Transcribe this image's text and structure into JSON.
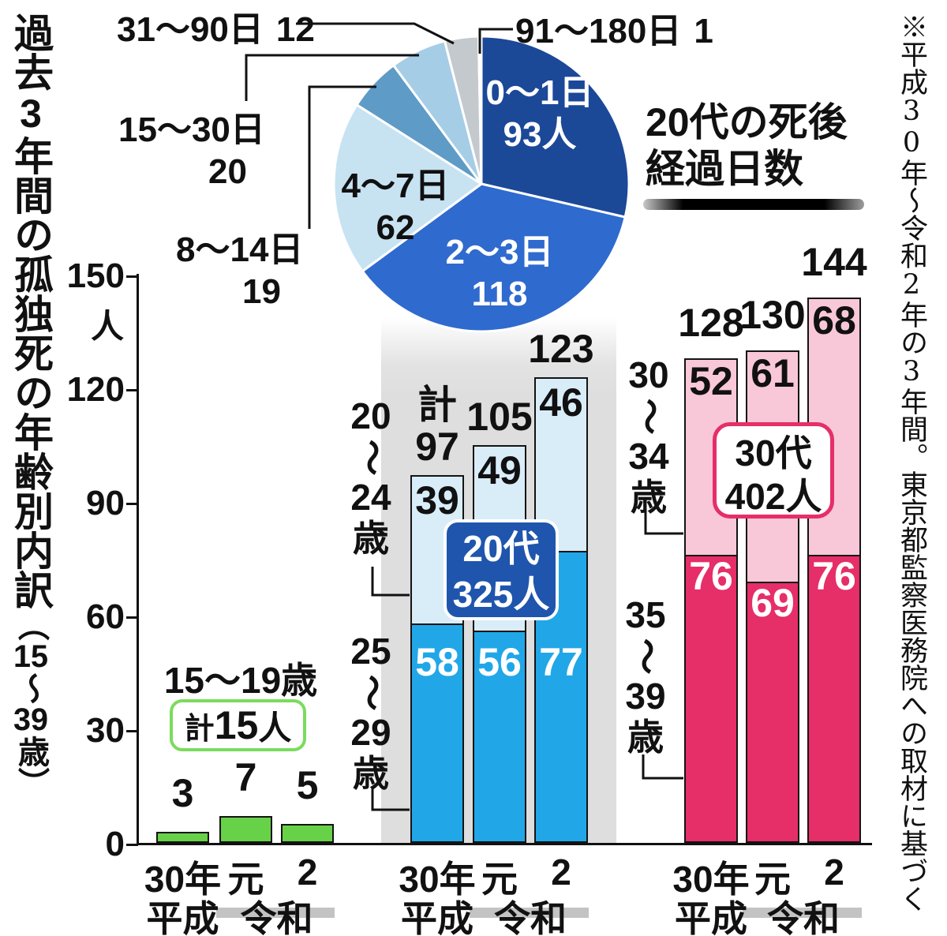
{
  "title_left": {
    "main": "過去3年間の孤独死の年齢別内訳",
    "suffix": "（15～39歳）"
  },
  "source_note": "※平成30年～令和2年の3年間。東京都監察医務院への取材に基づく",
  "pie": {
    "title_lines": [
      "20代の死後",
      "経過日数"
    ],
    "total": 325,
    "slices": [
      {
        "label": "0～1日",
        "value": 93,
        "display": "93人",
        "color": "#1c4898"
      },
      {
        "label": "2～3日",
        "value": 118,
        "display": "118",
        "color": "#2f6ace"
      },
      {
        "label": "4～7日",
        "value": 62,
        "display": "62",
        "color": "#c7e3f2"
      },
      {
        "label": "8～14日",
        "value": 19,
        "display": "19",
        "color": "#5e9bc6"
      },
      {
        "label": "15～30日",
        "value": 20,
        "display": "20",
        "color": "#a6cde6"
      },
      {
        "label": "31～90日",
        "value": 12,
        "display": "12",
        "color": "#c4c9cd"
      },
      {
        "label": "91～180日",
        "value": 1,
        "display": "1",
        "color": "#e4e7ea"
      }
    ]
  },
  "y_axis": {
    "ticks": [
      0,
      30,
      60,
      90,
      120,
      150
    ],
    "unit": "人",
    "max": 150
  },
  "x_axis": {
    "year_labels": [
      "30年",
      "元",
      "2"
    ],
    "era_heisei": "平成",
    "era_reiwa": "令和"
  },
  "groups": [
    {
      "heading": "15～19歳",
      "note_box": {
        "prefix": "計",
        "number": "15",
        "suffix": "人"
      },
      "color": "#67d247",
      "values": [
        3,
        7,
        5
      ],
      "totals": [
        [
          "3"
        ],
        [
          "7"
        ],
        [
          "5"
        ]
      ]
    },
    {
      "badge": {
        "line1": "20代",
        "line2": "325人"
      },
      "upper_label": [
        "20",
        "～",
        "24",
        "歳"
      ],
      "lower_label": [
        "25",
        "～",
        "29",
        "歳"
      ],
      "upper_color": "#d9edf8",
      "lower_color": "#21a7e8",
      "upper_values": [
        39,
        49,
        46
      ],
      "lower_values": [
        58,
        56,
        77
      ],
      "totals": [
        [
          "計",
          "97"
        ],
        [
          "105"
        ],
        [
          "123"
        ]
      ]
    },
    {
      "badge": {
        "line1": "30代",
        "line2": "402人"
      },
      "upper_label": [
        "30",
        "～",
        "34",
        "歳"
      ],
      "lower_label": [
        "35",
        "～",
        "39",
        "歳"
      ],
      "upper_color": "#f8c8d8",
      "lower_color": "#e62e68",
      "upper_values": [
        52,
        61,
        68
      ],
      "lower_values": [
        76,
        69,
        76
      ],
      "totals": [
        [
          "128"
        ],
        [
          "130"
        ],
        [
          "144"
        ]
      ]
    }
  ],
  "chart_data": [
    {
      "type": "pie",
      "title": "20代の死後経過日数",
      "labels": [
        "0～1日",
        "2～3日",
        "4～7日",
        "8～14日",
        "15～30日",
        "31～90日",
        "91～180日"
      ],
      "values": [
        93,
        118,
        62,
        19,
        20,
        12,
        1
      ],
      "unit": "人",
      "total": 325,
      "legend_position": "outside-callouts"
    },
    {
      "type": "bar",
      "title": "過去3年間の孤独死の年齢別内訳（15～39歳）",
      "categories": [
        "平成30年",
        "令和元",
        "令和2"
      ],
      "ylabel": "人",
      "ylim": [
        0,
        150
      ],
      "grid": false,
      "series": [
        {
          "name": "15～19歳",
          "values": [
            3,
            7,
            5
          ],
          "total": 15
        },
        {
          "name": "20～24歳",
          "values": [
            39,
            49,
            46
          ]
        },
        {
          "name": "25～29歳",
          "values": [
            58,
            56,
            77
          ]
        },
        {
          "name": "20代 計",
          "values": [
            97,
            105,
            123
          ],
          "total": 325
        },
        {
          "name": "30～34歳",
          "values": [
            52,
            61,
            68
          ]
        },
        {
          "name": "35～39歳",
          "values": [
            76,
            69,
            76
          ]
        },
        {
          "name": "30代 計",
          "values": [
            128,
            130,
            144
          ],
          "total": 402
        }
      ]
    }
  ]
}
